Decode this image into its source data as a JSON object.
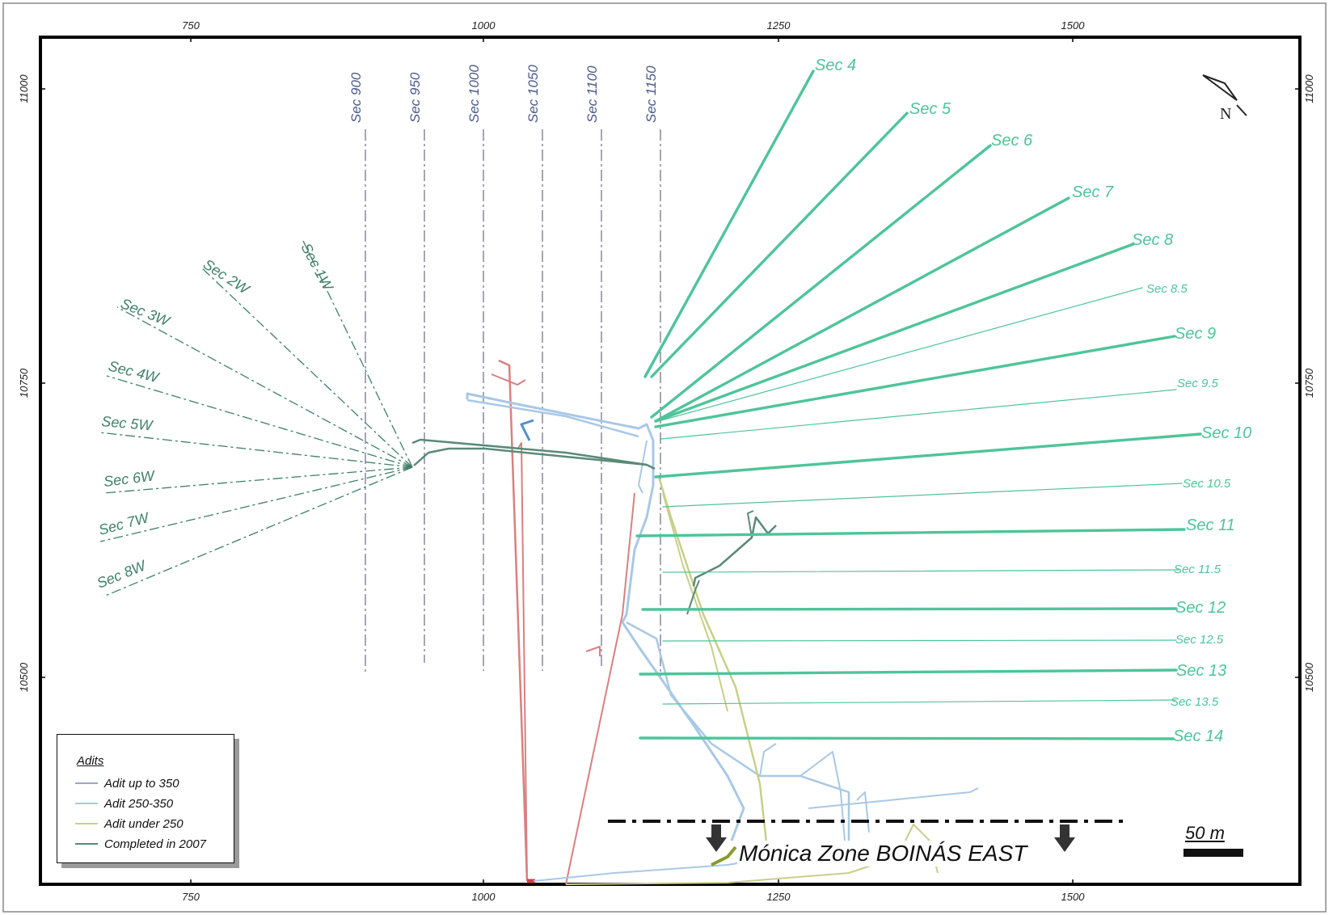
{
  "axes": {
    "x_ticks": [
      "750",
      "1000",
      "1250",
      "1500"
    ],
    "y_ticks": [
      "11000",
      "10750",
      "10500"
    ]
  },
  "north_label": "N",
  "vertical_sections": [
    "Sec 900",
    "Sec 950",
    "Sec 1000",
    "Sec 1050",
    "Sec 1100",
    "Sec 1150"
  ],
  "west_sections": [
    "Sec 1W",
    "Sec 2W",
    "Sec 3W",
    "Sec 4W",
    "Sec 5W",
    "Sec 6W",
    "Sec 7W",
    "Sec 8W"
  ],
  "east_sections": [
    {
      "label": "Sec 4",
      "major": true
    },
    {
      "label": "Sec 5",
      "major": true
    },
    {
      "label": "Sec 6",
      "major": true
    },
    {
      "label": "Sec 7",
      "major": true
    },
    {
      "label": "Sec 8",
      "major": true
    },
    {
      "label": "Sec 8.5",
      "major": false
    },
    {
      "label": "Sec 9",
      "major": true
    },
    {
      "label": "Sec 9.5",
      "major": false
    },
    {
      "label": "Sec 10",
      "major": true
    },
    {
      "label": "Sec 10.5",
      "major": false
    },
    {
      "label": "Sec 11",
      "major": true
    },
    {
      "label": "Sec 11.5",
      "major": false
    },
    {
      "label": "Sec 12",
      "major": true
    },
    {
      "label": "Sec 12.5",
      "major": false
    },
    {
      "label": "Sec 13",
      "major": true
    },
    {
      "label": "Sec 13.5",
      "major": false
    },
    {
      "label": "Sec 14",
      "major": true
    }
  ],
  "legend": {
    "title": "Adits",
    "items": [
      {
        "label": "Adit up to 350",
        "color": "#9aa6c8"
      },
      {
        "label": "Adit 250-350",
        "color": "#a8c8e6"
      },
      {
        "label": "Adit under 250",
        "color": "#c8cf8a"
      },
      {
        "label": "Completed in 2007",
        "color": "#5a8a78"
      }
    ]
  },
  "scale_bar": "50 m",
  "zone_title": "Mónica Zone BOINÁS EAST",
  "colors": {
    "section_east": "#4ec49a",
    "section_west": "#3f7f68",
    "section_vertical": "#6a6a84",
    "vertical_label": "#4a5a8a",
    "adit_blue": "#a8c8e6",
    "adit_red": "#d88080",
    "adit_olive": "#c8cf8a",
    "adit_green": "#5a8a78"
  }
}
